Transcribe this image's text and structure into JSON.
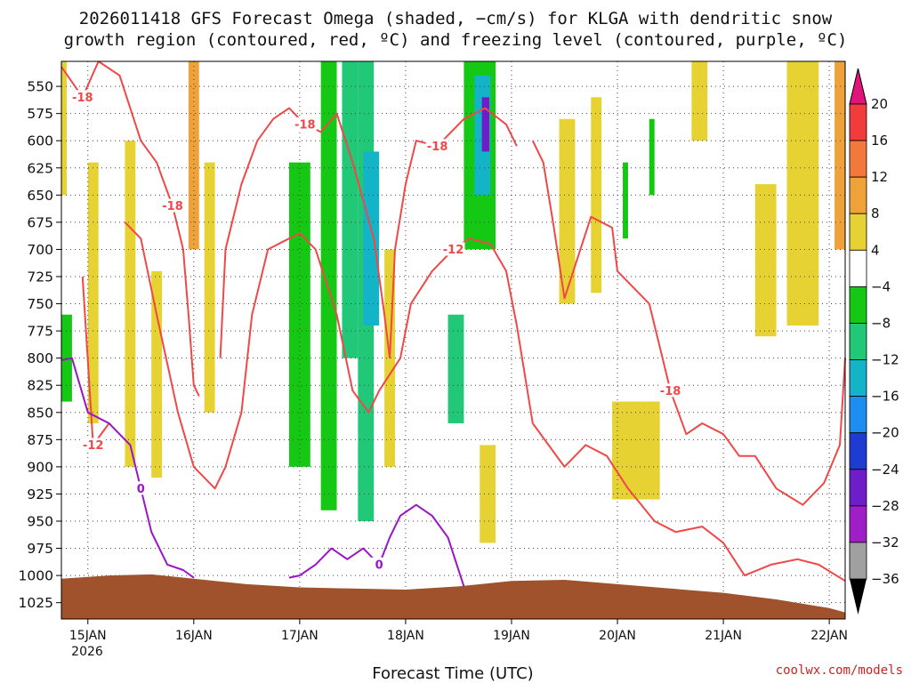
{
  "chart_data": {
    "type": "heatmap",
    "title_line1": "2026011418 GFS Forecast Omega (shaded, −cm/s) for KLGA with dendritic snow",
    "title_line2": "growth region (contoured, red, ºC) and freezing level (contoured, purple, ºC)",
    "xlabel": "Forecast Time (UTC)",
    "credit": "coolwx.com/models",
    "x_ticks": [
      "15JAN",
      "16JAN",
      "17JAN",
      "18JAN",
      "19JAN",
      "20JAN",
      "21JAN",
      "22JAN"
    ],
    "x_tick_sub": "2026",
    "x_range_days": [
      14.75,
      22.15
    ],
    "y_ticks": [
      550,
      575,
      600,
      625,
      650,
      675,
      700,
      725,
      750,
      775,
      800,
      825,
      850,
      875,
      900,
      925,
      950,
      975,
      1000,
      1025
    ],
    "ylim": [
      527,
      1040
    ],
    "y_inverted": true,
    "grid": true,
    "colorbar": {
      "labels": [
        "20",
        "16",
        "12",
        "8",
        "4",
        "−4",
        "−8",
        "−12",
        "−16",
        "−20",
        "−24",
        "−28",
        "−32",
        "−36"
      ],
      "bins": [
        {
          "min": 20,
          "max": 24,
          "color": "#e0147a"
        },
        {
          "min": 16,
          "max": 20,
          "color": "#f23c3c"
        },
        {
          "min": 12,
          "max": 16,
          "color": "#f2783c"
        },
        {
          "min": 8,
          "max": 12,
          "color": "#f0a23a"
        },
        {
          "min": 4,
          "max": 8,
          "color": "#e6d232"
        },
        {
          "min": -4,
          "max": 4,
          "color": "#ffffff"
        },
        {
          "min": -8,
          "max": -4,
          "color": "#14c814"
        },
        {
          "min": -12,
          "max": -8,
          "color": "#20c878"
        },
        {
          "min": -16,
          "max": -12,
          "color": "#14b4c8"
        },
        {
          "min": -20,
          "max": -16,
          "color": "#1e8cf0"
        },
        {
          "min": -24,
          "max": -20,
          "color": "#1e3cd2"
        },
        {
          "min": -28,
          "max": -24,
          "color": "#6e1ec8"
        },
        {
          "min": -32,
          "max": -28,
          "color": "#a01ec8"
        },
        {
          "min": -36,
          "max": -32,
          "color": "#a0a0a0"
        }
      ]
    },
    "shaded_regions": [
      {
        "t0": 14.75,
        "t1": 14.8,
        "p0": 527,
        "p1": 650,
        "value": 6
      },
      {
        "t0": 15.0,
        "t1": 15.1,
        "p0": 620,
        "p1": 860,
        "value": 6
      },
      {
        "t0": 15.35,
        "t1": 15.45,
        "p0": 600,
        "p1": 900,
        "value": 6
      },
      {
        "t0": 15.6,
        "t1": 15.7,
        "p0": 720,
        "p1": 910,
        "value": 6
      },
      {
        "t0": 15.95,
        "t1": 16.05,
        "p0": 527,
        "p1": 700,
        "value": 10
      },
      {
        "t0": 16.1,
        "t1": 16.2,
        "p0": 620,
        "p1": 850,
        "value": 6
      },
      {
        "t0": 14.75,
        "t1": 14.85,
        "p0": 760,
        "p1": 840,
        "value": -6
      },
      {
        "t0": 16.9,
        "t1": 17.1,
        "p0": 620,
        "p1": 900,
        "value": -6
      },
      {
        "t0": 17.2,
        "t1": 17.35,
        "p0": 527,
        "p1": 940,
        "value": -6
      },
      {
        "t0": 17.4,
        "t1": 17.55,
        "p0": 527,
        "p1": 800,
        "value": -10
      },
      {
        "t0": 17.55,
        "t1": 17.7,
        "p0": 527,
        "p1": 950,
        "value": -10
      },
      {
        "t0": 17.6,
        "t1": 17.75,
        "p0": 610,
        "p1": 770,
        "value": -14
      },
      {
        "t0": 17.8,
        "t1": 17.9,
        "p0": 700,
        "p1": 900,
        "value": 6
      },
      {
        "t0": 18.4,
        "t1": 18.55,
        "p0": 760,
        "p1": 860,
        "value": -10
      },
      {
        "t0": 18.55,
        "t1": 18.85,
        "p0": 527,
        "p1": 700,
        "value": -6
      },
      {
        "t0": 18.65,
        "t1": 18.8,
        "p0": 540,
        "p1": 650,
        "value": -14
      },
      {
        "t0": 18.72,
        "t1": 18.79,
        "p0": 560,
        "p1": 610,
        "value": -26
      },
      {
        "t0": 18.7,
        "t1": 18.85,
        "p0": 880,
        "p1": 970,
        "value": 6
      },
      {
        "t0": 19.45,
        "t1": 19.6,
        "p0": 580,
        "p1": 750,
        "value": 6
      },
      {
        "t0": 19.75,
        "t1": 19.85,
        "p0": 560,
        "p1": 740,
        "value": 6
      },
      {
        "t0": 20.05,
        "t1": 20.1,
        "p0": 620,
        "p1": 690,
        "value": -6
      },
      {
        "t0": 20.3,
        "t1": 20.35,
        "p0": 580,
        "p1": 650,
        "value": -6
      },
      {
        "t0": 19.95,
        "t1": 20.4,
        "p0": 840,
        "p1": 930,
        "value": 6
      },
      {
        "t0": 20.7,
        "t1": 20.85,
        "p0": 527,
        "p1": 600,
        "value": 6
      },
      {
        "t0": 21.3,
        "t1": 21.5,
        "p0": 640,
        "p1": 780,
        "value": 6
      },
      {
        "t0": 21.6,
        "t1": 21.9,
        "p0": 527,
        "p1": 770,
        "value": 6
      },
      {
        "t0": 22.05,
        "t1": 22.15,
        "p0": 527,
        "p1": 700,
        "value": 10
      }
    ],
    "contours_red": [
      {
        "value": -18,
        "points": [
          [
            14.75,
            532
          ],
          [
            14.95,
            560
          ],
          [
            15.1,
            527
          ]
        ]
      },
      {
        "value": -18,
        "points": [
          [
            15.1,
            527
          ],
          [
            15.3,
            540
          ],
          [
            15.5,
            600
          ],
          [
            15.65,
            620
          ],
          [
            15.8,
            660
          ],
          [
            15.9,
            700
          ],
          [
            15.95,
            760
          ],
          [
            16.0,
            825
          ],
          [
            16.05,
            835
          ]
        ]
      },
      {
        "value": -18,
        "points": [
          [
            16.25,
            800
          ],
          [
            16.3,
            700
          ],
          [
            16.45,
            640
          ],
          [
            16.6,
            600
          ],
          [
            16.75,
            580
          ],
          [
            16.9,
            570
          ],
          [
            17.05,
            585
          ],
          [
            17.2,
            592
          ],
          [
            17.35,
            575
          ],
          [
            17.5,
            620
          ],
          [
            17.7,
            690
          ],
          [
            17.8,
            760
          ],
          [
            17.85,
            800
          ]
        ]
      },
      {
        "value": -18,
        "points": [
          [
            17.85,
            800
          ],
          [
            17.9,
            700
          ],
          [
            18.0,
            640
          ],
          [
            18.1,
            600
          ],
          [
            18.3,
            605
          ],
          [
            18.55,
            580
          ],
          [
            18.75,
            570
          ],
          [
            18.95,
            585
          ],
          [
            19.05,
            605
          ]
        ]
      },
      {
        "value": -18,
        "points": [
          [
            19.2,
            600
          ],
          [
            19.3,
            620
          ],
          [
            19.4,
            680
          ],
          [
            19.5,
            745
          ],
          [
            19.65,
            700
          ],
          [
            19.75,
            670
          ],
          [
            19.95,
            680
          ],
          [
            20.0,
            720
          ],
          [
            20.3,
            750
          ],
          [
            20.4,
            790
          ],
          [
            20.5,
            830
          ],
          [
            20.65,
            870
          ],
          [
            20.8,
            860
          ],
          [
            21.0,
            870
          ],
          [
            21.15,
            890
          ],
          [
            21.3,
            890
          ],
          [
            21.5,
            920
          ],
          [
            21.75,
            935
          ],
          [
            21.95,
            915
          ],
          [
            22.1,
            880
          ],
          [
            22.15,
            800
          ]
        ]
      },
      {
        "value": -12,
        "points": [
          [
            14.95,
            725
          ],
          [
            15.05,
            880
          ],
          [
            15.2,
            860
          ]
        ]
      },
      {
        "value": -12,
        "points": [
          [
            15.35,
            675
          ],
          [
            15.5,
            690
          ],
          [
            15.65,
            760
          ],
          [
            15.85,
            850
          ],
          [
            16.0,
            900
          ],
          [
            16.2,
            920
          ],
          [
            16.3,
            900
          ],
          [
            16.45,
            850
          ],
          [
            16.55,
            760
          ],
          [
            16.7,
            700
          ],
          [
            16.9,
            690
          ],
          [
            17.0,
            685
          ],
          [
            17.15,
            700
          ],
          [
            17.35,
            760
          ],
          [
            17.5,
            830
          ],
          [
            17.65,
            850
          ],
          [
            17.75,
            830
          ],
          [
            17.95,
            800
          ],
          [
            18.05,
            750
          ],
          [
            18.25,
            720
          ],
          [
            18.45,
            700
          ],
          [
            18.6,
            690
          ],
          [
            18.8,
            695
          ],
          [
            18.95,
            720
          ],
          [
            19.05,
            770
          ],
          [
            19.2,
            860
          ],
          [
            19.35,
            880
          ],
          [
            19.5,
            900
          ],
          [
            19.7,
            880
          ],
          [
            19.9,
            890
          ],
          [
            20.1,
            920
          ],
          [
            20.35,
            950
          ],
          [
            20.55,
            960
          ],
          [
            20.8,
            955
          ],
          [
            21.0,
            970
          ],
          [
            21.2,
            1000
          ],
          [
            21.45,
            990
          ],
          [
            21.7,
            985
          ],
          [
            21.9,
            990
          ],
          [
            22.15,
            1005
          ]
        ]
      }
    ],
    "contours_purple": [
      {
        "value": 0,
        "points": [
          [
            14.75,
            802
          ],
          [
            14.85,
            800
          ],
          [
            15.0,
            850
          ],
          [
            15.2,
            860
          ],
          [
            15.4,
            880
          ],
          [
            15.5,
            920
          ],
          [
            15.6,
            960
          ],
          [
            15.75,
            990
          ],
          [
            15.9,
            995
          ],
          [
            16.0,
            1002
          ]
        ]
      },
      {
        "value": 0,
        "points": [
          [
            16.9,
            1002
          ],
          [
            17.0,
            1000
          ],
          [
            17.15,
            990
          ],
          [
            17.3,
            975
          ],
          [
            17.45,
            985
          ],
          [
            17.6,
            975
          ],
          [
            17.75,
            990
          ],
          [
            17.85,
            965
          ],
          [
            17.95,
            945
          ],
          [
            18.1,
            935
          ],
          [
            18.25,
            945
          ],
          [
            18.4,
            965
          ],
          [
            18.55,
            1010
          ]
        ]
      }
    ],
    "terrain": {
      "color": "#a0522d",
      "points": [
        [
          14.75,
          1003
        ],
        [
          15.2,
          1000
        ],
        [
          15.6,
          999
        ],
        [
          16.0,
          1003
        ],
        [
          16.5,
          1008
        ],
        [
          17.0,
          1011
        ],
        [
          17.5,
          1012
        ],
        [
          18.0,
          1013
        ],
        [
          18.5,
          1010
        ],
        [
          19.0,
          1005
        ],
        [
          19.5,
          1004
        ],
        [
          20.0,
          1008
        ],
        [
          20.5,
          1012
        ],
        [
          21.0,
          1016
        ],
        [
          21.5,
          1022
        ],
        [
          22.0,
          1030
        ],
        [
          22.15,
          1034
        ]
      ]
    }
  }
}
